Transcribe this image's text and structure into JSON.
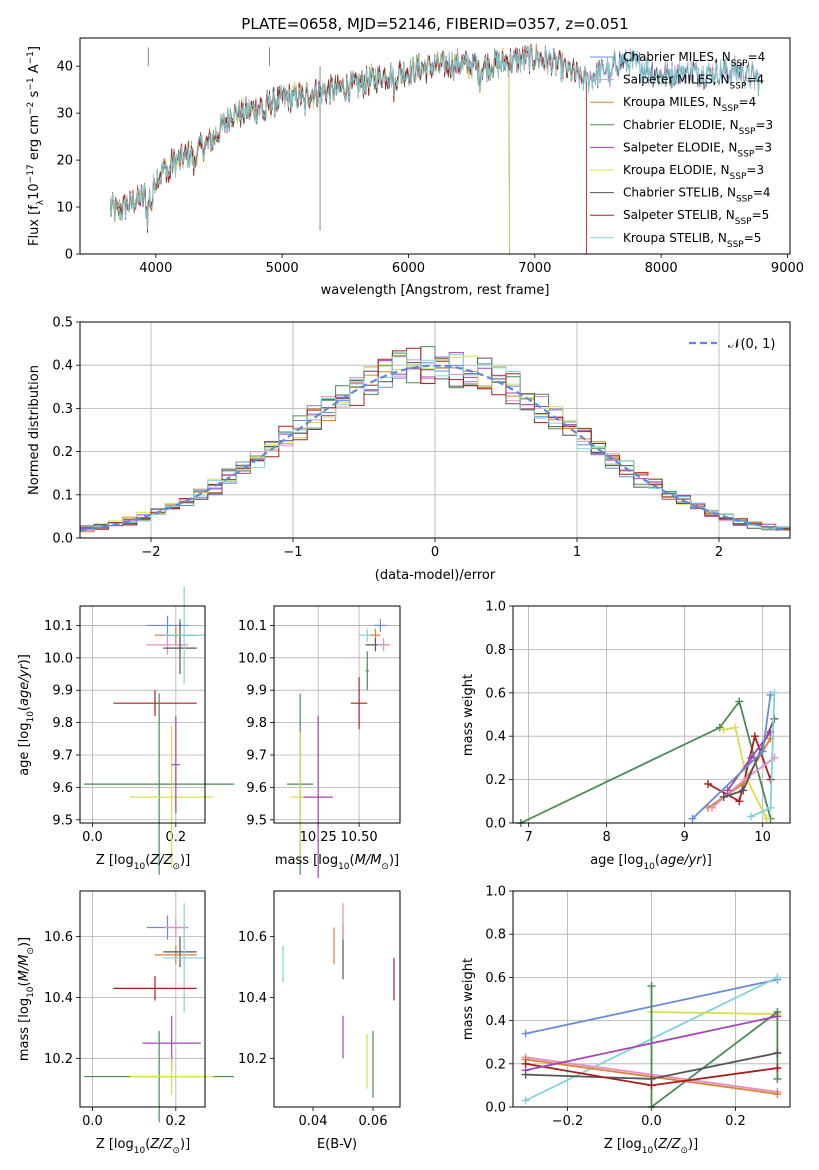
{
  "chart_data": [
    {
      "id": "spectrum",
      "type": "line",
      "title": "PLATE=0658, MJD=52146, FIBERID=0357, z=0.051",
      "xlabel": "wavelength [Angstrom, rest frame]",
      "ylabel": "Flux [f_λ 10^-17 erg cm^-2 s^-1 A^-1]",
      "xlim": [
        3400,
        9020
      ],
      "ylim": [
        0,
        46
      ],
      "xticks": [
        4000,
        5000,
        6000,
        7000,
        8000,
        9000
      ],
      "yticks": [
        0,
        10,
        20,
        30,
        40
      ],
      "grid": false,
      "legend_position": "upper-right",
      "continuum": {
        "x": [
          3640,
          3700,
          3800,
          3900,
          4000,
          4100,
          4200,
          4300,
          4400,
          4500,
          4600,
          4700,
          4800,
          4900,
          5000,
          5200,
          5400,
          5600,
          5800,
          6000,
          6200,
          6400,
          6600,
          6800,
          7000,
          7200,
          7400,
          7600,
          7700,
          7800,
          8000,
          8200,
          8400,
          8600,
          8780
        ],
        "y": [
          10,
          9,
          11,
          12,
          16,
          19,
          20,
          22,
          23,
          26,
          30,
          30,
          31,
          32,
          33,
          34,
          35,
          36,
          38,
          39,
          40,
          40.5,
          40,
          41,
          42,
          40,
          37,
          40,
          41,
          40.5,
          38,
          39,
          38.5,
          39,
          37
        ]
      },
      "series": [
        {
          "name": "Chabrier MILES, N_SSP=4",
          "color": "#6a8cd6",
          "cutoff": null
        },
        {
          "name": "Salpeter MILES, N_SSP=4",
          "color": "#e48fc4",
          "cutoff": null
        },
        {
          "name": "Kroupa MILES, N_SSP=4",
          "color": "#d98232",
          "cutoff": 7410
        },
        {
          "name": "Chabrier ELODIE, N_SSP=3",
          "color": "#4c8a55",
          "cutoff": 6800
        },
        {
          "name": "Salpeter ELODIE, N_SSP=3",
          "color": "#a543b4",
          "cutoff": 6800
        },
        {
          "name": "Kroupa ELODIE, N_SSP=3",
          "color": "#d6e04a",
          "cutoff": 6800
        },
        {
          "name": "Chabrier STELIB, N_SSP=4",
          "color": "#555555",
          "cutoff": null
        },
        {
          "name": "Salpeter STELIB, N_SSP=5",
          "color": "#a52020",
          "cutoff": 7410
        },
        {
          "name": "Kroupa STELIB, N_SSP=5",
          "color": "#7fd3d8",
          "cutoff": null
        }
      ],
      "legend_labels": [
        [
          "Chabrier MILES, N",
          "SSP",
          "=4"
        ],
        [
          "Salpeter MILES, N",
          "SSP",
          "=4"
        ],
        [
          "Kroupa MILES, N",
          "SSP",
          "=4"
        ],
        [
          "Chabrier ELODIE, N",
          "SSP",
          "=3"
        ],
        [
          "Salpeter ELODIE, N",
          "SSP",
          "=3"
        ],
        [
          "Kroupa ELODIE, N",
          "SSP",
          "=3"
        ],
        [
          "Chabrier STELIB, N",
          "SSP",
          "=4"
        ],
        [
          "Salpeter STELIB, N",
          "SSP",
          "=5"
        ],
        [
          "Kroupa STELIB, N",
          "SSP",
          "=5"
        ]
      ]
    },
    {
      "id": "residuals",
      "type": "histogram",
      "xlabel": "(data-model)/error",
      "ylabel": "Normed distribution",
      "xlim": [
        -2.5,
        2.5
      ],
      "ylim": [
        0,
        0.5
      ],
      "xticks": [
        -2,
        -1,
        0,
        1,
        2
      ],
      "yticks": [
        0.0,
        0.1,
        0.2,
        0.3,
        0.4,
        0.5
      ],
      "grid": true,
      "legend_position": "upper-right",
      "legend": "N(0,1)",
      "reference_curve": {
        "name": "N(0,1)",
        "mean": 0,
        "sigma": 1,
        "color": "#5b8bd8"
      }
    },
    {
      "id": "age_vs_Z",
      "type": "scatter",
      "xlabel": "Z [log10(Z/Z_sun)]",
      "ylabel": "age [log10(age/yr)]",
      "xlim": [
        -0.03,
        0.27
      ],
      "ylim": [
        9.49,
        10.16
      ],
      "xticks": [
        0.0,
        0.2
      ],
      "yticks": [
        9.5,
        9.6,
        9.7,
        9.8,
        9.9,
        10.0,
        10.1
      ],
      "grid": true,
      "points": [
        {
          "x": 0.18,
          "y": 10.1,
          "xerr": 0.05,
          "yerr": 0.03,
          "color": "#6a8cd6"
        },
        {
          "x": 0.2,
          "y": 10.07,
          "xerr": 0.05,
          "yerr": 0.03,
          "color": "#d98232"
        },
        {
          "x": 0.18,
          "y": 10.04,
          "xerr": 0.05,
          "yerr": 0.03,
          "color": "#e48fc4"
        },
        {
          "x": 0.21,
          "y": 10.07,
          "xerr": 0.04,
          "yerr": 0.05,
          "color": "#4c8a55"
        },
        {
          "x": 0.21,
          "y": 10.03,
          "xerr": 0.04,
          "yerr": 0.08,
          "color": "#555555"
        },
        {
          "x": 0.22,
          "y": 10.07,
          "xerr": 0.05,
          "yerr": 0.15,
          "color": "#7fd3d8"
        },
        {
          "x": 0.15,
          "y": 9.86,
          "xerr": 0.1,
          "yerr": 0.04,
          "color": "#a52020"
        },
        {
          "x": 0.16,
          "y": 9.61,
          "xerr": 0.18,
          "yerr": 0.28,
          "color": "#4c8a55"
        },
        {
          "x": 0.19,
          "y": 9.57,
          "xerr": 0.1,
          "yerr": 0.22,
          "color": "#d6e04a"
        },
        {
          "x": 0.2,
          "y": 9.67,
          "xerr": 0.01,
          "yerr": 0.15,
          "color": "#a543b4"
        }
      ]
    },
    {
      "id": "age_vs_mass",
      "type": "scatter",
      "xlabel": "mass [log10(M/M_sun)]",
      "ylabel": "",
      "xlim": [
        9.98,
        10.75
      ],
      "ylim": [
        9.49,
        10.16
      ],
      "xticks": [
        10.25,
        10.5
      ],
      "yticks": [
        9.5,
        9.6,
        9.7,
        9.8,
        9.9,
        10.0,
        10.1
      ],
      "grid": true,
      "points": [
        {
          "x": 10.63,
          "y": 10.1,
          "xerr": 0.04,
          "yerr": 0.02,
          "color": "#6a8cd6"
        },
        {
          "x": 10.55,
          "y": 10.07,
          "xerr": 0.05,
          "yerr": 0.02,
          "color": "#7fd3d8"
        },
        {
          "x": 10.6,
          "y": 10.07,
          "xerr": 0.03,
          "yerr": 0.02,
          "color": "#d98232"
        },
        {
          "x": 10.6,
          "y": 10.04,
          "xerr": 0.06,
          "yerr": 0.02,
          "color": "#555555"
        },
        {
          "x": 10.65,
          "y": 10.04,
          "xerr": 0.04,
          "yerr": 0.02,
          "color": "#e48fc4"
        },
        {
          "x": 10.5,
          "y": 9.86,
          "xerr": 0.05,
          "yerr": 0.08,
          "color": "#a52020"
        },
        {
          "x": 10.55,
          "y": 9.96,
          "xerr": 0.01,
          "yerr": 0.06,
          "color": "#4c8a55"
        },
        {
          "x": 10.14,
          "y": 9.61,
          "xerr": 0.08,
          "yerr": 0.28,
          "color": "#4c8a55"
        },
        {
          "x": 10.14,
          "y": 9.57,
          "xerr": 0.06,
          "yerr": 0.2,
          "color": "#d6e04a"
        },
        {
          "x": 10.25,
          "y": 9.57,
          "xerr": 0.09,
          "yerr": 0.25,
          "color": "#a543b4"
        }
      ]
    },
    {
      "id": "weight_vs_age",
      "type": "line",
      "xlabel": "age [log10(age/yr)]",
      "ylabel": "mass weight",
      "xlim": [
        6.8,
        10.35
      ],
      "ylim": [
        0,
        1.0
      ],
      "xticks": [
        7,
        8,
        9,
        10
      ],
      "yticks": [
        0.0,
        0.2,
        0.4,
        0.6,
        0.8,
        1.0
      ],
      "grid": true,
      "series": [
        {
          "color": "#4c8a55",
          "x": [
            6.9,
            9.45,
            9.7,
            10.1
          ],
          "y": [
            0.0,
            0.44,
            0.56,
            0.02
          ]
        },
        {
          "color": "#d6e04a",
          "x": [
            9.5,
            9.65,
            9.8,
            10.05
          ],
          "y": [
            0.43,
            0.44,
            0.2,
            0.02
          ]
        },
        {
          "color": "#a52020",
          "x": [
            9.3,
            9.7,
            9.9,
            10.1
          ],
          "y": [
            0.18,
            0.1,
            0.4,
            0.2
          ]
        },
        {
          "color": "#d98232",
          "x": [
            9.3,
            9.75,
            10.1
          ],
          "y": [
            0.07,
            0.18,
            0.39
          ]
        },
        {
          "color": "#e48fc4",
          "x": [
            9.35,
            9.8,
            10.15
          ],
          "y": [
            0.07,
            0.21,
            0.3
          ]
        },
        {
          "color": "#555555",
          "x": [
            9.5,
            9.75,
            10.15
          ],
          "y": [
            0.12,
            0.15,
            0.48
          ]
        },
        {
          "color": "#a543b4",
          "x": [
            9.55,
            9.85,
            10.1
          ],
          "y": [
            0.15,
            0.3,
            0.42
          ]
        },
        {
          "color": "#6a8cd6",
          "x": [
            9.1,
            10.0,
            10.1
          ],
          "y": [
            0.02,
            0.33,
            0.59
          ]
        },
        {
          "color": "#7fd3d8",
          "x": [
            9.85,
            10.1,
            10.15
          ],
          "y": [
            0.03,
            0.07,
            0.6
          ]
        }
      ]
    },
    {
      "id": "mass_vs_Z",
      "type": "scatter",
      "xlabel": "Z [log10(Z/Z_sun)]",
      "ylabel": "mass [log10(M/M_sun)]",
      "xlim": [
        -0.03,
        0.27
      ],
      "ylim": [
        10.04,
        10.75
      ],
      "xticks": [
        0.0,
        0.2
      ],
      "yticks": [
        10.2,
        10.4,
        10.6
      ],
      "grid": true,
      "points": [
        {
          "x": 0.18,
          "y": 10.63,
          "xerr": 0.05,
          "yerr": 0.04,
          "color": "#6a8cd6"
        },
        {
          "x": 0.2,
          "y": 10.63,
          "xerr": 0.03,
          "yerr": 0.03,
          "color": "#e48fc4"
        },
        {
          "x": 0.2,
          "y": 10.54,
          "xerr": 0.05,
          "yerr": 0.03,
          "color": "#d98232"
        },
        {
          "x": 0.21,
          "y": 10.55,
          "xerr": 0.04,
          "yerr": 0.05,
          "color": "#555555"
        },
        {
          "x": 0.22,
          "y": 10.53,
          "xerr": 0.05,
          "yerr": 0.18,
          "color": "#7fd3d8"
        },
        {
          "x": 0.15,
          "y": 10.43,
          "xerr": 0.1,
          "yerr": 0.04,
          "color": "#a52020"
        },
        {
          "x": 0.19,
          "y": 10.25,
          "xerr": 0.07,
          "yerr": 0.09,
          "color": "#a543b4"
        },
        {
          "x": 0.16,
          "y": 10.14,
          "xerr": 0.18,
          "yerr": 0.15,
          "color": "#4c8a55"
        },
        {
          "x": 0.19,
          "y": 10.14,
          "xerr": 0.1,
          "yerr": 0.06,
          "color": "#d6e04a"
        }
      ]
    },
    {
      "id": "mass_vs_ebv",
      "type": "scatter",
      "xlabel": "E(B-V)",
      "ylabel": "",
      "xlim": [
        0.027,
        0.069
      ],
      "ylim": [
        10.04,
        10.75
      ],
      "xticks": [
        0.04,
        0.06
      ],
      "yticks": [
        10.2,
        10.4,
        10.6
      ],
      "grid": false,
      "points": [
        {
          "x": 0.03,
          "y": 10.51,
          "yerr": 0.06,
          "color": "#7fd3d8"
        },
        {
          "x": 0.047,
          "y": 10.57,
          "yerr": 0.06,
          "color": "#d98232"
        },
        {
          "x": 0.05,
          "y": 10.55,
          "yerr": 0.09,
          "color": "#555555"
        },
        {
          "x": 0.05,
          "y": 10.65,
          "yerr": 0.06,
          "color": "#e48fc4"
        },
        {
          "x": 0.05,
          "y": 10.27,
          "yerr": 0.07,
          "color": "#a543b4"
        },
        {
          "x": 0.058,
          "y": 10.19,
          "yerr": 0.09,
          "color": "#d6e04a"
        },
        {
          "x": 0.06,
          "y": 10.18,
          "yerr": 0.11,
          "color": "#4c8a55"
        },
        {
          "x": 0.067,
          "y": 10.46,
          "yerr": 0.07,
          "color": "#a52020"
        }
      ]
    },
    {
      "id": "weight_vs_Z",
      "type": "line",
      "xlabel": "Z [log10(Z/Z_sun)]",
      "ylabel": "mass weight",
      "xlim": [
        -0.33,
        0.33
      ],
      "ylim": [
        0,
        1.0
      ],
      "xticks": [
        -0.2,
        0.0,
        0.2
      ],
      "yticks": [
        0.0,
        0.2,
        0.4,
        0.6,
        0.8,
        1.0
      ],
      "grid": true,
      "series": [
        {
          "color": "#6a8cd6",
          "x": [
            -0.3,
            0.3
          ],
          "y": [
            0.34,
            0.59
          ]
        },
        {
          "color": "#7fd3d8",
          "x": [
            -0.3,
            0.3
          ],
          "y": [
            0.03,
            0.6
          ]
        },
        {
          "color": "#d6e04a",
          "x": [
            0.0,
            0.3
          ],
          "y": [
            0.44,
            0.43
          ]
        },
        {
          "color": "#4c8a55",
          "x": [
            0.0,
            0.0,
            0.3,
            0.3
          ],
          "y": [
            0.56,
            0.0,
            0.44,
            0.13
          ]
        },
        {
          "color": "#e48fc4",
          "x": [
            -0.3,
            0.3
          ],
          "y": [
            0.23,
            0.07
          ]
        },
        {
          "color": "#d98232",
          "x": [
            -0.3,
            0.3
          ],
          "y": [
            0.22,
            0.06
          ]
        },
        {
          "color": "#555555",
          "x": [
            -0.3,
            0.0,
            0.3
          ],
          "y": [
            0.15,
            0.13,
            0.25
          ]
        },
        {
          "color": "#a52020",
          "x": [
            -0.3,
            0.0,
            0.3
          ],
          "y": [
            0.2,
            0.1,
            0.18
          ]
        },
        {
          "color": "#a543b4",
          "x": [
            -0.3,
            0.3
          ],
          "y": [
            0.17,
            0.42
          ]
        }
      ]
    }
  ]
}
